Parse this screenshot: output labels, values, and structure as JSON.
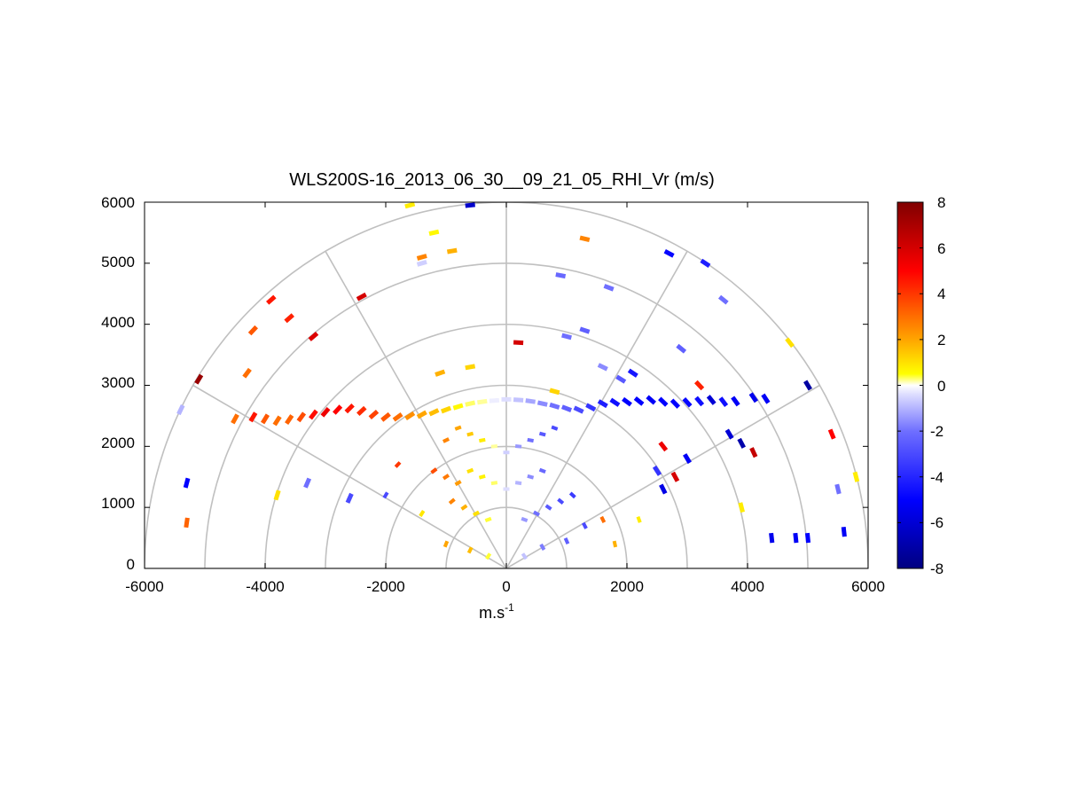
{
  "chart_data": {
    "type": "heatmap",
    "title": "WLS200S-16_2013_06_30__09_21_05_RHI_Vr (m/s)",
    "xlabel": "m.s",
    "xlabel_superscript": "-1",
    "ylabel": "",
    "xlim": [
      -6000,
      6000
    ],
    "ylim": [
      0,
      6000
    ],
    "xticks": [
      "-6000",
      "-4000",
      "-2000",
      "0",
      "2000",
      "4000",
      "6000"
    ],
    "yticks": [
      "0",
      "1000",
      "2000",
      "3000",
      "4000",
      "5000",
      "6000"
    ],
    "polar_grid": {
      "range_rings_m": [
        1000,
        2000,
        3000,
        4000,
        5000,
        6000
      ],
      "spokes_deg": [
        0,
        30,
        60,
        90,
        120,
        150,
        180
      ]
    },
    "colorbar": {
      "min": -8,
      "max": 8,
      "ticks": [
        "8",
        "6",
        "4",
        "2",
        "0",
        "-2",
        "-4",
        "-6",
        "-8"
      ],
      "colormap": [
        {
          "v": -8,
          "color": "#000080"
        },
        {
          "v": -5,
          "color": "#0000ff"
        },
        {
          "v": -2,
          "color": "#6f6fff"
        },
        {
          "v": -0.4,
          "color": "#ddddff"
        },
        {
          "v": 0,
          "color": "#ffffff"
        },
        {
          "v": 0.5,
          "color": "#ffff00"
        },
        {
          "v": 2,
          "color": "#ffa500"
        },
        {
          "v": 5,
          "color": "#ff0000"
        },
        {
          "v": 8,
          "color": "#800000"
        }
      ]
    },
    "gates_x_y_vr": [
      [
        -600,
        2700,
        0.3
      ],
      [
        -400,
        2730,
        0.2
      ],
      [
        -200,
        2750,
        -0.2
      ],
      [
        0,
        2770,
        -0.4
      ],
      [
        200,
        2760,
        -0.8
      ],
      [
        400,
        2740,
        -1.2
      ],
      [
        600,
        2700,
        -1.6
      ],
      [
        800,
        2660,
        -2.0
      ],
      [
        1000,
        2620,
        -2.4
      ],
      [
        1200,
        2600,
        -3.0
      ],
      [
        1400,
        2640,
        -3.6
      ],
      [
        1600,
        2700,
        -4.2
      ],
      [
        1800,
        2720,
        -4.6
      ],
      [
        2000,
        2730,
        -5.0
      ],
      [
        2200,
        2740,
        -5.0
      ],
      [
        2400,
        2760,
        -5.2
      ],
      [
        2600,
        2730,
        -5.0
      ],
      [
        2800,
        2700,
        -5.0
      ],
      [
        3000,
        2720,
        -4.8
      ],
      [
        3200,
        2740,
        -4.6
      ],
      [
        3400,
        2760,
        -6.0
      ],
      [
        3600,
        2730,
        -4.6
      ],
      [
        3800,
        2740,
        -5.2
      ],
      [
        4100,
        2800,
        -5.4
      ],
      [
        4300,
        2780,
        -5.2
      ],
      [
        -800,
        2650,
        0.6
      ],
      [
        -1000,
        2600,
        1.2
      ],
      [
        -1200,
        2560,
        1.6
      ],
      [
        -1400,
        2520,
        2.0
      ],
      [
        -1600,
        2500,
        2.4
      ],
      [
        -1800,
        2480,
        3.0
      ],
      [
        -2000,
        2480,
        3.4
      ],
      [
        -2200,
        2520,
        3.8
      ],
      [
        -2400,
        2580,
        4.2
      ],
      [
        -2600,
        2620,
        4.6
      ],
      [
        -2800,
        2600,
        5.0
      ],
      [
        -3000,
        2560,
        5.4
      ],
      [
        -3200,
        2520,
        4.8
      ],
      [
        -3400,
        2480,
        3.6
      ],
      [
        -3600,
        2440,
        3.2
      ],
      [
        -3800,
        2420,
        3.0
      ],
      [
        -4000,
        2450,
        3.4
      ],
      [
        -4200,
        2480,
        4.6
      ],
      [
        -600,
        1600,
        1.0
      ],
      [
        -400,
        1500,
        0.7
      ],
      [
        -200,
        1400,
        0.3
      ],
      [
        0,
        1300,
        -0.4
      ],
      [
        200,
        1400,
        -1.0
      ],
      [
        400,
        1500,
        -1.6
      ],
      [
        600,
        1600,
        -2.2
      ],
      [
        -800,
        1400,
        2.2
      ],
      [
        -1000,
        1500,
        2.8
      ],
      [
        -1200,
        1600,
        3.6
      ],
      [
        -900,
        1100,
        2.6
      ],
      [
        -700,
        1000,
        1.8
      ],
      [
        -500,
        900,
        1.0
      ],
      [
        -300,
        800,
        0.4
      ],
      [
        300,
        800,
        -1.4
      ],
      [
        500,
        900,
        -2.0
      ],
      [
        700,
        1000,
        -2.6
      ],
      [
        900,
        1100,
        -3.0
      ],
      [
        1100,
        1200,
        -3.4
      ],
      [
        -400,
        2100,
        0.8
      ],
      [
        -200,
        2000,
        0.2
      ],
      [
        0,
        1900,
        -0.6
      ],
      [
        200,
        2000,
        -1.4
      ],
      [
        400,
        2100,
        -2.0
      ],
      [
        600,
        2200,
        -2.6
      ],
      [
        800,
        2300,
        -3.0
      ],
      [
        -600,
        2200,
        1.4
      ],
      [
        -800,
        2300,
        2.0
      ],
      [
        -1000,
        2100,
        2.6
      ],
      [
        -3200,
        3800,
        5.8
      ],
      [
        -3600,
        4100,
        4.4
      ],
      [
        -3900,
        4400,
        4.6
      ],
      [
        -2400,
        4450,
        6.0
      ],
      [
        -1400,
        5100,
        2.6
      ],
      [
        -1400,
        5000,
        -0.6
      ],
      [
        -900,
        5200,
        1.8
      ],
      [
        -1600,
        5950,
        0.8
      ],
      [
        -600,
        5950,
        -6.2
      ],
      [
        2700,
        5160,
        -4.8
      ],
      [
        3300,
        5000,
        -4.2
      ],
      [
        3600,
        4400,
        -2.0
      ],
      [
        4700,
        3700,
        1.0
      ],
      [
        5000,
        3000,
        -7.2
      ],
      [
        5400,
        2200,
        5.0
      ],
      [
        5500,
        1300,
        -2.0
      ],
      [
        5800,
        1500,
        0.8
      ],
      [
        5600,
        600,
        -5.2
      ],
      [
        4400,
        500,
        -5.4
      ],
      [
        4800,
        500,
        -5.2
      ],
      [
        5000,
        500,
        -5.0
      ],
      [
        -5300,
        1400,
        -5.0
      ],
      [
        -5300,
        750,
        3.2
      ],
      [
        -4500,
        2450,
        3.0
      ],
      [
        -3800,
        1200,
        1.0
      ],
      [
        -3300,
        1400,
        -2.0
      ],
      [
        -2600,
        1150,
        -3.0
      ],
      [
        -5100,
        3100,
        7.4
      ],
      [
        -5400,
        2600,
        -1.0
      ],
      [
        2900,
        3600,
        -2.4
      ],
      [
        2600,
        2000,
        5.4
      ],
      [
        3000,
        1800,
        -5.2
      ],
      [
        3700,
        2200,
        -6.0
      ],
      [
        3900,
        2050,
        -7.0
      ],
      [
        4100,
        1900,
        6.4
      ],
      [
        3900,
        1000,
        0.8
      ],
      [
        2500,
        1600,
        -3.6
      ],
      [
        1600,
        800,
        3.0
      ],
      [
        2200,
        800,
        0.8
      ],
      [
        1800,
        400,
        1.8
      ],
      [
        -1800,
        1700,
        4.0
      ],
      [
        -2000,
        1200,
        -3.0
      ],
      [
        -1400,
        900,
        0.9
      ],
      [
        -1000,
        400,
        2.0
      ],
      [
        -600,
        300,
        1.6
      ],
      [
        -300,
        200,
        0.4
      ],
      [
        300,
        200,
        -0.8
      ],
      [
        600,
        350,
        -1.8
      ],
      [
        1000,
        450,
        -2.4
      ],
      [
        1300,
        700,
        -3.0
      ],
      [
        800,
        2900,
        1.2
      ],
      [
        200,
        3700,
        6.0
      ],
      [
        -600,
        3300,
        1.2
      ],
      [
        -1100,
        3200,
        1.8
      ],
      [
        1000,
        3800,
        -2.0
      ],
      [
        1600,
        3300,
        -1.6
      ],
      [
        1900,
        3100,
        -2.6
      ],
      [
        2100,
        3200,
        -4.4
      ],
      [
        1300,
        3900,
        -2.4
      ],
      [
        1700,
        4600,
        -2.0
      ],
      [
        900,
        4800,
        -2.2
      ],
      [
        1300,
        5400,
        2.6
      ],
      [
        -1200,
        5500,
        0.6
      ],
      [
        2600,
        1300,
        -5.6
      ],
      [
        2800,
        1500,
        6.0
      ],
      [
        3200,
        3000,
        4.4
      ],
      [
        -4300,
        3200,
        3.0
      ],
      [
        -4200,
        3900,
        3.4
      ]
    ]
  }
}
